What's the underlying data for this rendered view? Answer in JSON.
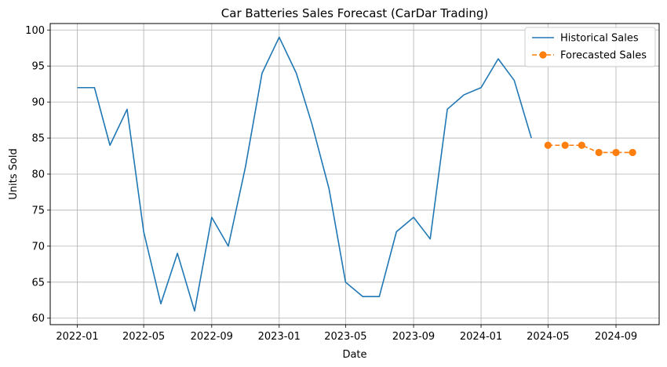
{
  "chart_data": {
    "type": "line",
    "title": "Car Batteries Sales Forecast (CarDar Trading)",
    "xlabel": "Date",
    "ylabel": "Units Sold",
    "xlim": [
      "2021-11-13",
      "2024-11-18"
    ],
    "ylim": [
      59.1,
      100.9
    ],
    "x_ticks": [
      "2022-01",
      "2022-05",
      "2022-09",
      "2023-01",
      "2023-05",
      "2023-09",
      "2024-01",
      "2024-05",
      "2024-09"
    ],
    "y_ticks": [
      60,
      65,
      70,
      75,
      80,
      85,
      90,
      95,
      100
    ],
    "grid": true,
    "legend_position": "top-right",
    "series": [
      {
        "name": "Historical Sales",
        "color": "#1f77b4",
        "style": "solid",
        "marker": "none",
        "x": [
          "2022-01",
          "2022-02",
          "2022-03",
          "2022-04",
          "2022-05",
          "2022-06",
          "2022-07",
          "2022-08",
          "2022-09",
          "2022-10",
          "2022-11",
          "2022-12",
          "2023-01",
          "2023-02",
          "2023-03",
          "2023-04",
          "2023-05",
          "2023-06",
          "2023-07",
          "2023-08",
          "2023-09",
          "2023-10",
          "2023-11",
          "2023-12",
          "2024-01",
          "2024-02",
          "2024-03",
          "2024-04"
        ],
        "values": [
          92,
          92,
          84,
          89,
          72,
          62,
          69,
          61,
          74,
          70,
          81,
          94,
          99,
          94,
          87,
          78,
          65,
          63,
          63,
          72,
          74,
          71,
          89,
          91,
          92,
          96,
          93,
          85
        ]
      },
      {
        "name": "Forecasted Sales",
        "color": "#ff7f0e",
        "style": "dashed",
        "marker": "circle",
        "x": [
          "2024-05",
          "2024-06",
          "2024-07",
          "2024-08",
          "2024-09",
          "2024-10"
        ],
        "values": [
          84,
          84,
          84,
          83,
          83,
          83
        ]
      }
    ]
  }
}
